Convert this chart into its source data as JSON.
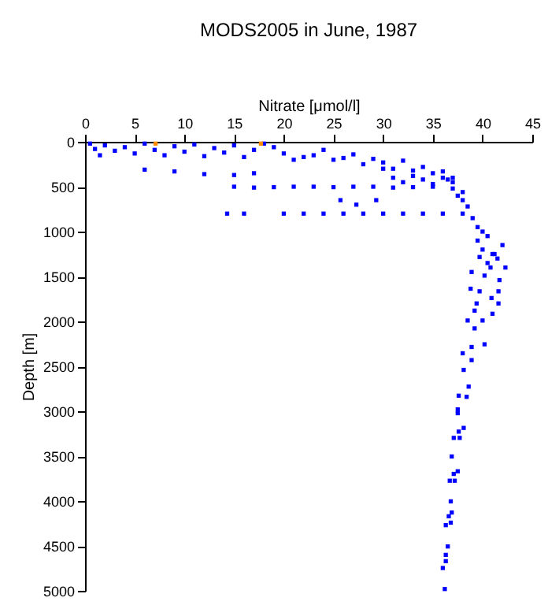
{
  "chart_data": {
    "type": "scatter",
    "title": "MODS2005 in June, 1987",
    "xlabel": "Nitrate [μmol/l]",
    "ylabel": "Depth [m]",
    "xlim": [
      0,
      45
    ],
    "xticks": [
      0,
      5,
      10,
      15,
      20,
      25,
      30,
      35,
      40,
      45
    ],
    "ylim": [
      5000,
      0
    ],
    "yticks": [
      0,
      500,
      1000,
      1500,
      2000,
      2500,
      3000,
      3500,
      4000,
      4500,
      5000
    ],
    "marker": "square",
    "grid": false,
    "series": [
      {
        "color": "#0000ff",
        "x": [
          0.5,
          1,
          1.5,
          2,
          3,
          4,
          5,
          6,
          7,
          8,
          9,
          10,
          11,
          12,
          13,
          14,
          15,
          16,
          17,
          18,
          19,
          20,
          21,
          22,
          23,
          24,
          25,
          26,
          27,
          28,
          29,
          30,
          31,
          32,
          33,
          34,
          35,
          36,
          37,
          6,
          9,
          12,
          15,
          17,
          15,
          17,
          19,
          21,
          23,
          25,
          27,
          29,
          31,
          33,
          35,
          14.3,
          16,
          20,
          22,
          24,
          26,
          28,
          30,
          32,
          34,
          36,
          25.7,
          29.3,
          27.3,
          30,
          31,
          32,
          33,
          34,
          35,
          36,
          37,
          38,
          36.5,
          37,
          37.5,
          38,
          38.5,
          38,
          39,
          39.5,
          40,
          40.5,
          39.5,
          40,
          41,
          40.5,
          42,
          41.5,
          40.8,
          39.7,
          41.2,
          42.3,
          38.9,
          40.2,
          41.7,
          38.8,
          39.7,
          41.6,
          40.9,
          39.4,
          41.6,
          39.2,
          41.0,
          38.5,
          40.0,
          39.2,
          40.2,
          38.9,
          38.0,
          38.9,
          38.1,
          38.6,
          37.6,
          38.4,
          37.5,
          37.5,
          38.1,
          37.6,
          37.1,
          37.7,
          36.9,
          37.5,
          37.1,
          36.7,
          37.2,
          36.8,
          36.9,
          36.6,
          36.8,
          36.3,
          36.5,
          36.3,
          36.3,
          36.0,
          36.2
        ],
        "values": [
          20,
          80,
          150,
          40,
          100,
          60,
          130,
          20,
          90,
          150,
          50,
          110,
          30,
          160,
          70,
          120,
          40,
          170,
          90,
          20,
          60,
          130,
          200,
          170,
          150,
          90,
          200,
          180,
          140,
          250,
          190,
          230,
          300,
          210,
          320,
          280,
          350,
          330,
          400,
          310,
          330,
          360,
          370,
          350,
          500,
          510,
          505,
          500,
          500,
          505,
          500,
          500,
          510,
          505,
          500,
          800,
          800,
          800,
          800,
          800,
          800,
          800,
          800,
          800,
          800,
          800,
          650,
          650,
          700,
          300,
          400,
          450,
          380,
          420,
          470,
          400,
          450,
          560,
          420,
          520,
          600,
          650,
          720,
          800,
          850,
          950,
          1000,
          1050,
          1100,
          1200,
          1250,
          1350,
          1150,
          1300,
          1400,
          1283,
          1250,
          1400,
          1450,
          1490,
          1540,
          1636,
          1665,
          1665,
          1740,
          1800,
          1800,
          1880,
          1915,
          1990,
          1990,
          2078,
          2255,
          2285,
          2355,
          2431,
          2540,
          2726,
          2827,
          2840,
          2980,
          3022,
          3186,
          3227,
          3297,
          3297,
          3504,
          3669,
          3698,
          3774,
          3774,
          4004,
          4128,
          4170,
          4241,
          4269,
          4506,
          4600,
          4670,
          4746,
          4980
        ]
      },
      {
        "color": "#ff8c00",
        "x": [
          7.1,
          17.7
        ],
        "values": [
          20,
          20
        ]
      }
    ]
  }
}
